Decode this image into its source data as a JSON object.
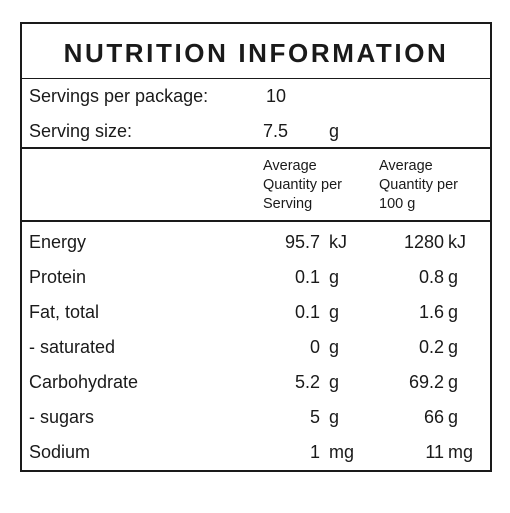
{
  "title": "NUTRITION INFORMATION",
  "servings_per_package": {
    "label": "Servings per package:",
    "value": "10"
  },
  "serving_size": {
    "label": "Serving size:",
    "value": "7.5",
    "unit": "g"
  },
  "columns": {
    "per_serving": [
      "Average",
      "Quantity per",
      "Serving"
    ],
    "per_100g": [
      "Average",
      "Quantity per",
      "100 g"
    ]
  },
  "rows": [
    {
      "name": "Energy",
      "serving": "95.7",
      "serving_unit": "kJ",
      "per100": "1280",
      "per100_unit": "kJ"
    },
    {
      "name": "Protein",
      "serving": "0.1",
      "serving_unit": "g",
      "per100": "0.8",
      "per100_unit": "g"
    },
    {
      "name": "Fat, total",
      "serving": "0.1",
      "serving_unit": "g",
      "per100": "1.6",
      "per100_unit": "g"
    },
    {
      "name": "- saturated",
      "serving": "0",
      "serving_unit": "g",
      "per100": "0.2",
      "per100_unit": "g"
    },
    {
      "name": "Carbohydrate",
      "serving": "5.2",
      "serving_unit": "g",
      "per100": "69.2",
      "per100_unit": "g"
    },
    {
      "name": "- sugars",
      "serving": "5",
      "serving_unit": "g",
      "per100": "66",
      "per100_unit": "g"
    },
    {
      "name": "Sodium",
      "serving": "1",
      "serving_unit": "mg",
      "per100": "11",
      "per100_unit": "mg"
    }
  ]
}
